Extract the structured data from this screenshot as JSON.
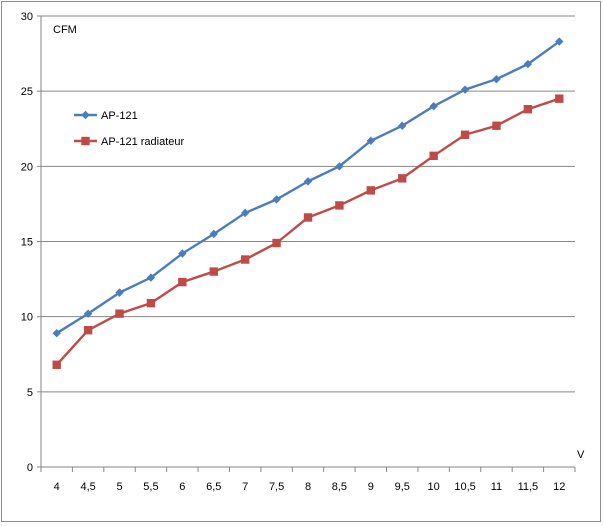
{
  "chart_data": {
    "type": "line",
    "title": "",
    "ylabel": "CFM",
    "xlabel": "V",
    "categories": [
      "4",
      "4,5",
      "5",
      "5,5",
      "6",
      "6,5",
      "7",
      "7,5",
      "8",
      "8,5",
      "9",
      "9,5",
      "10",
      "10,5",
      "11",
      "11,5",
      "12"
    ],
    "ylim": [
      0,
      30
    ],
    "yticks": [
      0,
      5,
      10,
      15,
      20,
      25,
      30
    ],
    "grid": "horizontal",
    "legend_position": "top-left",
    "series": [
      {
        "name": "AP-121",
        "color": "#4a7ebb",
        "marker": "diamond",
        "values": [
          8.9,
          10.2,
          11.6,
          12.6,
          14.2,
          15.5,
          16.9,
          17.8,
          19.0,
          20.0,
          21.7,
          22.7,
          24.0,
          25.1,
          25.8,
          26.8,
          28.3
        ]
      },
      {
        "name": "AP-121 radiateur",
        "color": "#be4b48",
        "marker": "square",
        "values": [
          6.8,
          9.1,
          10.2,
          10.9,
          12.3,
          13.0,
          13.8,
          14.9,
          16.6,
          17.4,
          18.4,
          19.2,
          20.7,
          22.1,
          22.7,
          23.8,
          24.5
        ]
      }
    ]
  }
}
